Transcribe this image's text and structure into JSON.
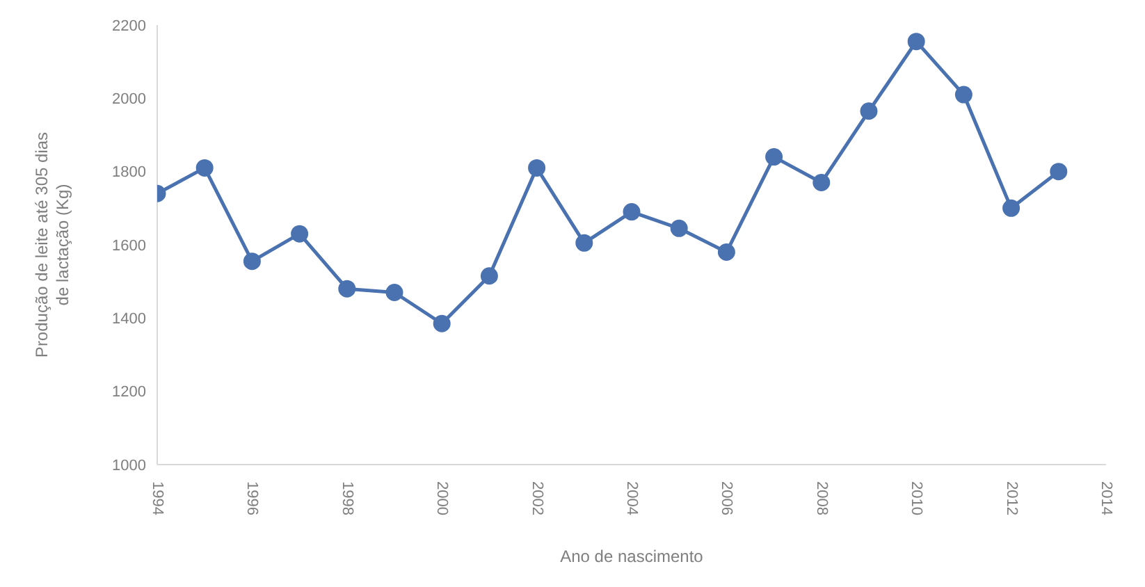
{
  "chart_data": {
    "type": "line",
    "xlabel": "Ano de nascimento",
    "ylabel": "Produção de leite até 305 dias de lactação (Kg)",
    "x": [
      1994,
      1995,
      1996,
      1997,
      1998,
      1999,
      2000,
      2001,
      2002,
      2003,
      2004,
      2005,
      2006,
      2007,
      2008,
      2009,
      2010,
      2011,
      2012,
      2013
    ],
    "series": [
      {
        "color": "#4a72b0",
        "values": [
          1740,
          1810,
          1555,
          1630,
          1480,
          1470,
          1385,
          1515,
          1810,
          1605,
          1690,
          1645,
          1580,
          1840,
          1770,
          1965,
          2155,
          2010,
          1700,
          1800
        ]
      }
    ],
    "xlim": [
      1994,
      2014
    ],
    "xticks": [
      1994,
      1996,
      1998,
      2000,
      2002,
      2004,
      2006,
      2008,
      2010,
      2012,
      2014
    ],
    "ylim": [
      1000,
      2200
    ],
    "yticks": [
      1000,
      1200,
      1400,
      1600,
      1800,
      2000,
      2200
    ],
    "grid": false,
    "legend": false,
    "marker": "circle",
    "line_style": "solid"
  }
}
